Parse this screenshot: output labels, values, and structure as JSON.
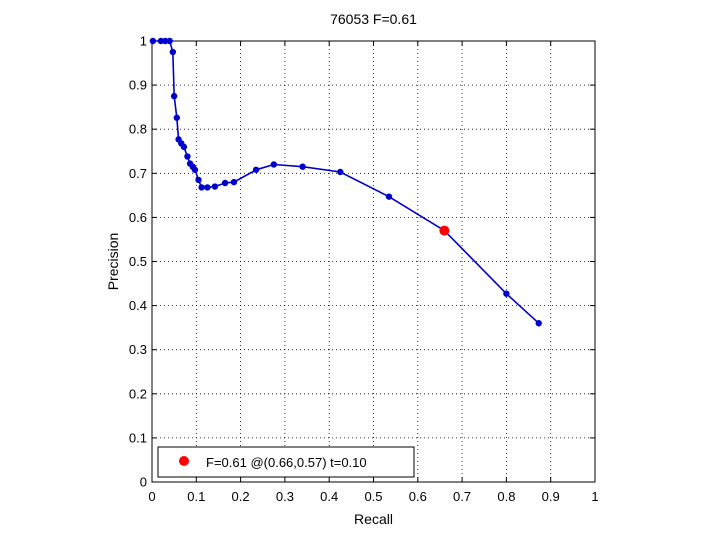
{
  "chart_data": {
    "type": "line",
    "title": "76053 F=0.61",
    "xlabel": "Recall",
    "ylabel": "Precision",
    "xlim": [
      0,
      1
    ],
    "ylim": [
      0,
      1
    ],
    "xticks": [
      "0",
      "0.1",
      "0.2",
      "0.3",
      "0.4",
      "0.5",
      "0.6",
      "0.7",
      "0.8",
      "0.9",
      "1"
    ],
    "yticks": [
      "0",
      "0.1",
      "0.2",
      "0.3",
      "0.4",
      "0.5",
      "0.6",
      "0.7",
      "0.8",
      "0.9",
      "1"
    ],
    "grid": true,
    "grid_style": "dotted",
    "legend_position": "bottom-left",
    "series": [
      {
        "color": "#0000cc",
        "marker": "dot",
        "points": [
          [
            0.002,
            1.0
          ],
          [
            0.02,
            1.0
          ],
          [
            0.03,
            1.0
          ],
          [
            0.04,
            1.0
          ],
          [
            0.047,
            0.975
          ],
          [
            0.05,
            0.875
          ],
          [
            0.056,
            0.826
          ],
          [
            0.06,
            0.777
          ],
          [
            0.066,
            0.768
          ],
          [
            0.072,
            0.76
          ],
          [
            0.08,
            0.738
          ],
          [
            0.086,
            0.722
          ],
          [
            0.092,
            0.715
          ],
          [
            0.097,
            0.708
          ],
          [
            0.105,
            0.685
          ],
          [
            0.112,
            0.668
          ],
          [
            0.125,
            0.668
          ],
          [
            0.142,
            0.67
          ],
          [
            0.165,
            0.678
          ],
          [
            0.185,
            0.68
          ],
          [
            0.235,
            0.708
          ],
          [
            0.275,
            0.72
          ],
          [
            0.34,
            0.715
          ],
          [
            0.425,
            0.703
          ],
          [
            0.535,
            0.647
          ],
          [
            0.66,
            0.57
          ],
          [
            0.8,
            0.427
          ],
          [
            0.873,
            0.36
          ]
        ]
      }
    ],
    "highlight": {
      "x": 0.66,
      "y": 0.57,
      "color": "#ff0000",
      "label": "F=0.61 @(0.66,0.57) t=0.10"
    }
  }
}
